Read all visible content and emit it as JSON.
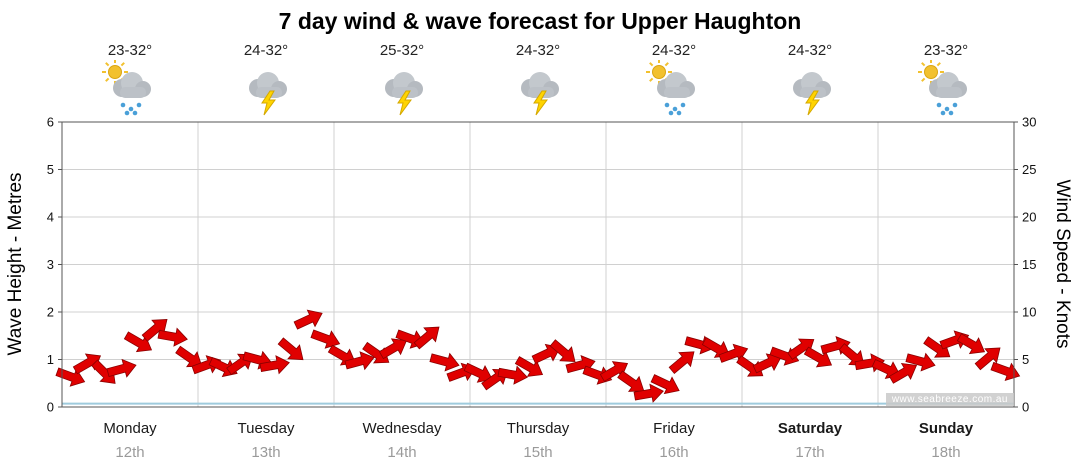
{
  "title": "7 day wind & wave forecast for Upper Haughton",
  "watermark": "www.seabreeze.com.au",
  "left_axis": {
    "label": "Wave Height - Metres",
    "ticks": [
      0,
      1,
      2,
      3,
      4,
      5,
      6
    ]
  },
  "right_axis": {
    "label": "Wind Speed - Knots",
    "ticks": [
      0,
      5,
      10,
      15,
      20,
      25,
      30
    ]
  },
  "days": [
    {
      "name": "Monday",
      "date": "12th",
      "temp": "23-32°",
      "icon": "sun-cloud-rain",
      "bold": false
    },
    {
      "name": "Tuesday",
      "date": "13th",
      "temp": "24-32°",
      "icon": "cloud-lightning",
      "bold": false
    },
    {
      "name": "Wednesday",
      "date": "14th",
      "temp": "25-32°",
      "icon": "cloud-lightning",
      "bold": false
    },
    {
      "name": "Thursday",
      "date": "15th",
      "temp": "24-32°",
      "icon": "cloud-lightning",
      "bold": false
    },
    {
      "name": "Friday",
      "date": "16th",
      "temp": "24-32°",
      "icon": "sun-cloud-rain",
      "bold": false
    },
    {
      "name": "Saturday",
      "date": "17th",
      "temp": "24-32°",
      "icon": "cloud-lightning",
      "bold": true
    },
    {
      "name": "Sunday",
      "date": "18th",
      "temp": "23-32°",
      "icon": "sun-cloud-rain",
      "bold": true
    }
  ],
  "chart_data": {
    "type": "scatter",
    "title": "7 day wind & wave forecast for Upper Haughton",
    "xlabel": "",
    "ylabel_left": "Wave Height - Metres",
    "ylabel_right": "Wind Speed - Knots",
    "ylim_left": [
      0,
      6
    ],
    "ylim_right": [
      0,
      30
    ],
    "grid": true,
    "x_categories": [
      "Monday 12th",
      "Tuesday 13th",
      "Wednesday 14th",
      "Thursday 15th",
      "Friday 16th",
      "Saturday 17th",
      "Sunday 18th"
    ],
    "points_per_day": 8,
    "series": [
      {
        "name": "Wind Speed",
        "unit": "knots",
        "marker": "red-arrow",
        "color": "#e00000",
        "edge_color": "#8b0000",
        "values": [
          3.2,
          4.6,
          3.6,
          4.0,
          6.8,
          8.2,
          7.4,
          5.2,
          4.4,
          4.2,
          4.6,
          5.0,
          4.4,
          6.0,
          9.2,
          7.2,
          5.4,
          4.8,
          5.6,
          6.2,
          7.2,
          7.4,
          4.8,
          3.6,
          3.6,
          3.0,
          3.4,
          4.2,
          5.6,
          5.8,
          4.4,
          3.4,
          3.8,
          2.6,
          1.4,
          2.4,
          4.8,
          6.6,
          6.2,
          5.6,
          4.2,
          4.6,
          5.4,
          6.2,
          5.2,
          6.4,
          5.4,
          4.6,
          4.0,
          3.6,
          4.8,
          6.2,
          7.0,
          6.6,
          5.2,
          3.8
        ],
        "direction_deg": [
          20,
          -30,
          45,
          -15,
          30,
          -40,
          10,
          35,
          -20,
          25,
          -35,
          15,
          -10,
          40,
          -25,
          20,
          30,
          -15,
          35,
          -30,
          20,
          -40,
          15,
          -20,
          25,
          -35,
          10,
          30,
          -25,
          40,
          -15,
          20,
          -30,
          35,
          -10,
          25,
          -40,
          15,
          30,
          -20,
          35,
          -25,
          20,
          -35,
          30,
          -15,
          40,
          -10,
          25,
          -30,
          15,
          35,
          -20,
          30,
          -40,
          20
        ]
      },
      {
        "name": "Wave Height",
        "unit": "metres",
        "marker": "line",
        "color": "#9fcbdd",
        "flat_value": 0.07
      }
    ]
  }
}
